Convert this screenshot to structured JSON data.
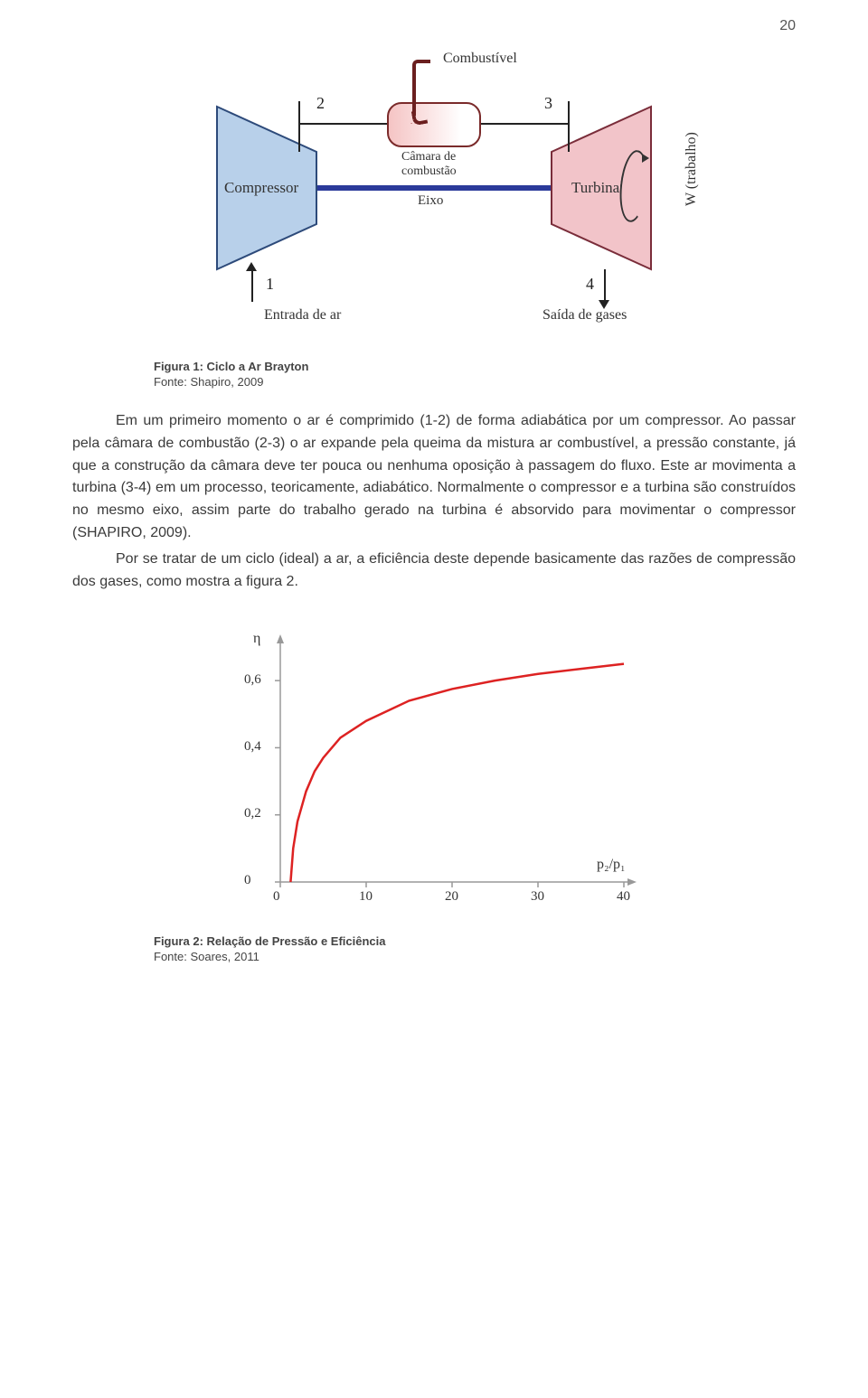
{
  "page_number": "20",
  "diagram": {
    "labels": {
      "combustivel": "Combustível",
      "camara": "Câmara de",
      "camara2": "combustão",
      "compressor": "Compressor",
      "turbina": "Turbina",
      "eixo": "Eixo",
      "entrada": "Entrada de ar",
      "saida": "Saída de gases",
      "trabalho": "W (trabalho)",
      "n1": "1",
      "n2": "2",
      "n3": "3",
      "n4": "4"
    },
    "colors": {
      "compressor_fill": "#b8d0ea",
      "compressor_stroke": "#2d4a7a",
      "turbine_fill": "#f2c4c9",
      "turbine_stroke": "#7a2d3a",
      "shaft": "#2b3a9a",
      "chamber_border": "#7a2a2a",
      "fuel_pipe": "#6b1f1f"
    }
  },
  "figure1": {
    "caption": "Figura 1: Ciclo a Ar Brayton",
    "source": "Fonte: Shapiro, 2009"
  },
  "paragraphs": {
    "p1": "Em um primeiro momento o ar é comprimido (1-2) de forma adiabática por um compressor. Ao passar pela câmara de combustão (2-3) o ar expande pela queima da mistura ar combustível, a pressão constante, já que a construção da câmara deve ter pouca ou nenhuma oposição à passagem do fluxo. Este ar movimenta a turbina (3-4) em um processo, teoricamente, adiabático. Normalmente o compressor e a turbina são construídos no mesmo eixo, assim parte do trabalho gerado na turbina é absorvido para movimentar o compressor (SHAPIRO, 2009).",
    "p2": "Por se tratar de um ciclo (ideal) a ar, a eficiência deste depende basicamente das razões de compressão dos gases, como mostra a figura 2."
  },
  "chart": {
    "type": "line",
    "y_label": "η",
    "x_label": "p₂/p₁",
    "xlim": [
      0,
      40
    ],
    "ylim": [
      0,
      0.7
    ],
    "xticks": [
      0,
      10,
      20,
      30,
      40
    ],
    "yticks": [
      0,
      0.2,
      0.4,
      0.6
    ],
    "ytick_labels": [
      "0",
      "0,2",
      "0,4",
      "0,6"
    ],
    "curve_points": [
      [
        1.2,
        0.0
      ],
      [
        1.5,
        0.1
      ],
      [
        2,
        0.18
      ],
      [
        3,
        0.27
      ],
      [
        4,
        0.33
      ],
      [
        5,
        0.37
      ],
      [
        7,
        0.43
      ],
      [
        10,
        0.48
      ],
      [
        15,
        0.54
      ],
      [
        20,
        0.575
      ],
      [
        25,
        0.6
      ],
      [
        30,
        0.62
      ],
      [
        35,
        0.635
      ],
      [
        40,
        0.65
      ]
    ],
    "curve_color": "#d22",
    "curve_width": 2.5,
    "axis_color": "#999999",
    "background_color": "#ffffff",
    "label_font": "Comic Sans MS"
  },
  "figure2": {
    "caption": "Figura 2: Relação de Pressão e Eficiência",
    "source": "Fonte: Soares, 2011"
  }
}
